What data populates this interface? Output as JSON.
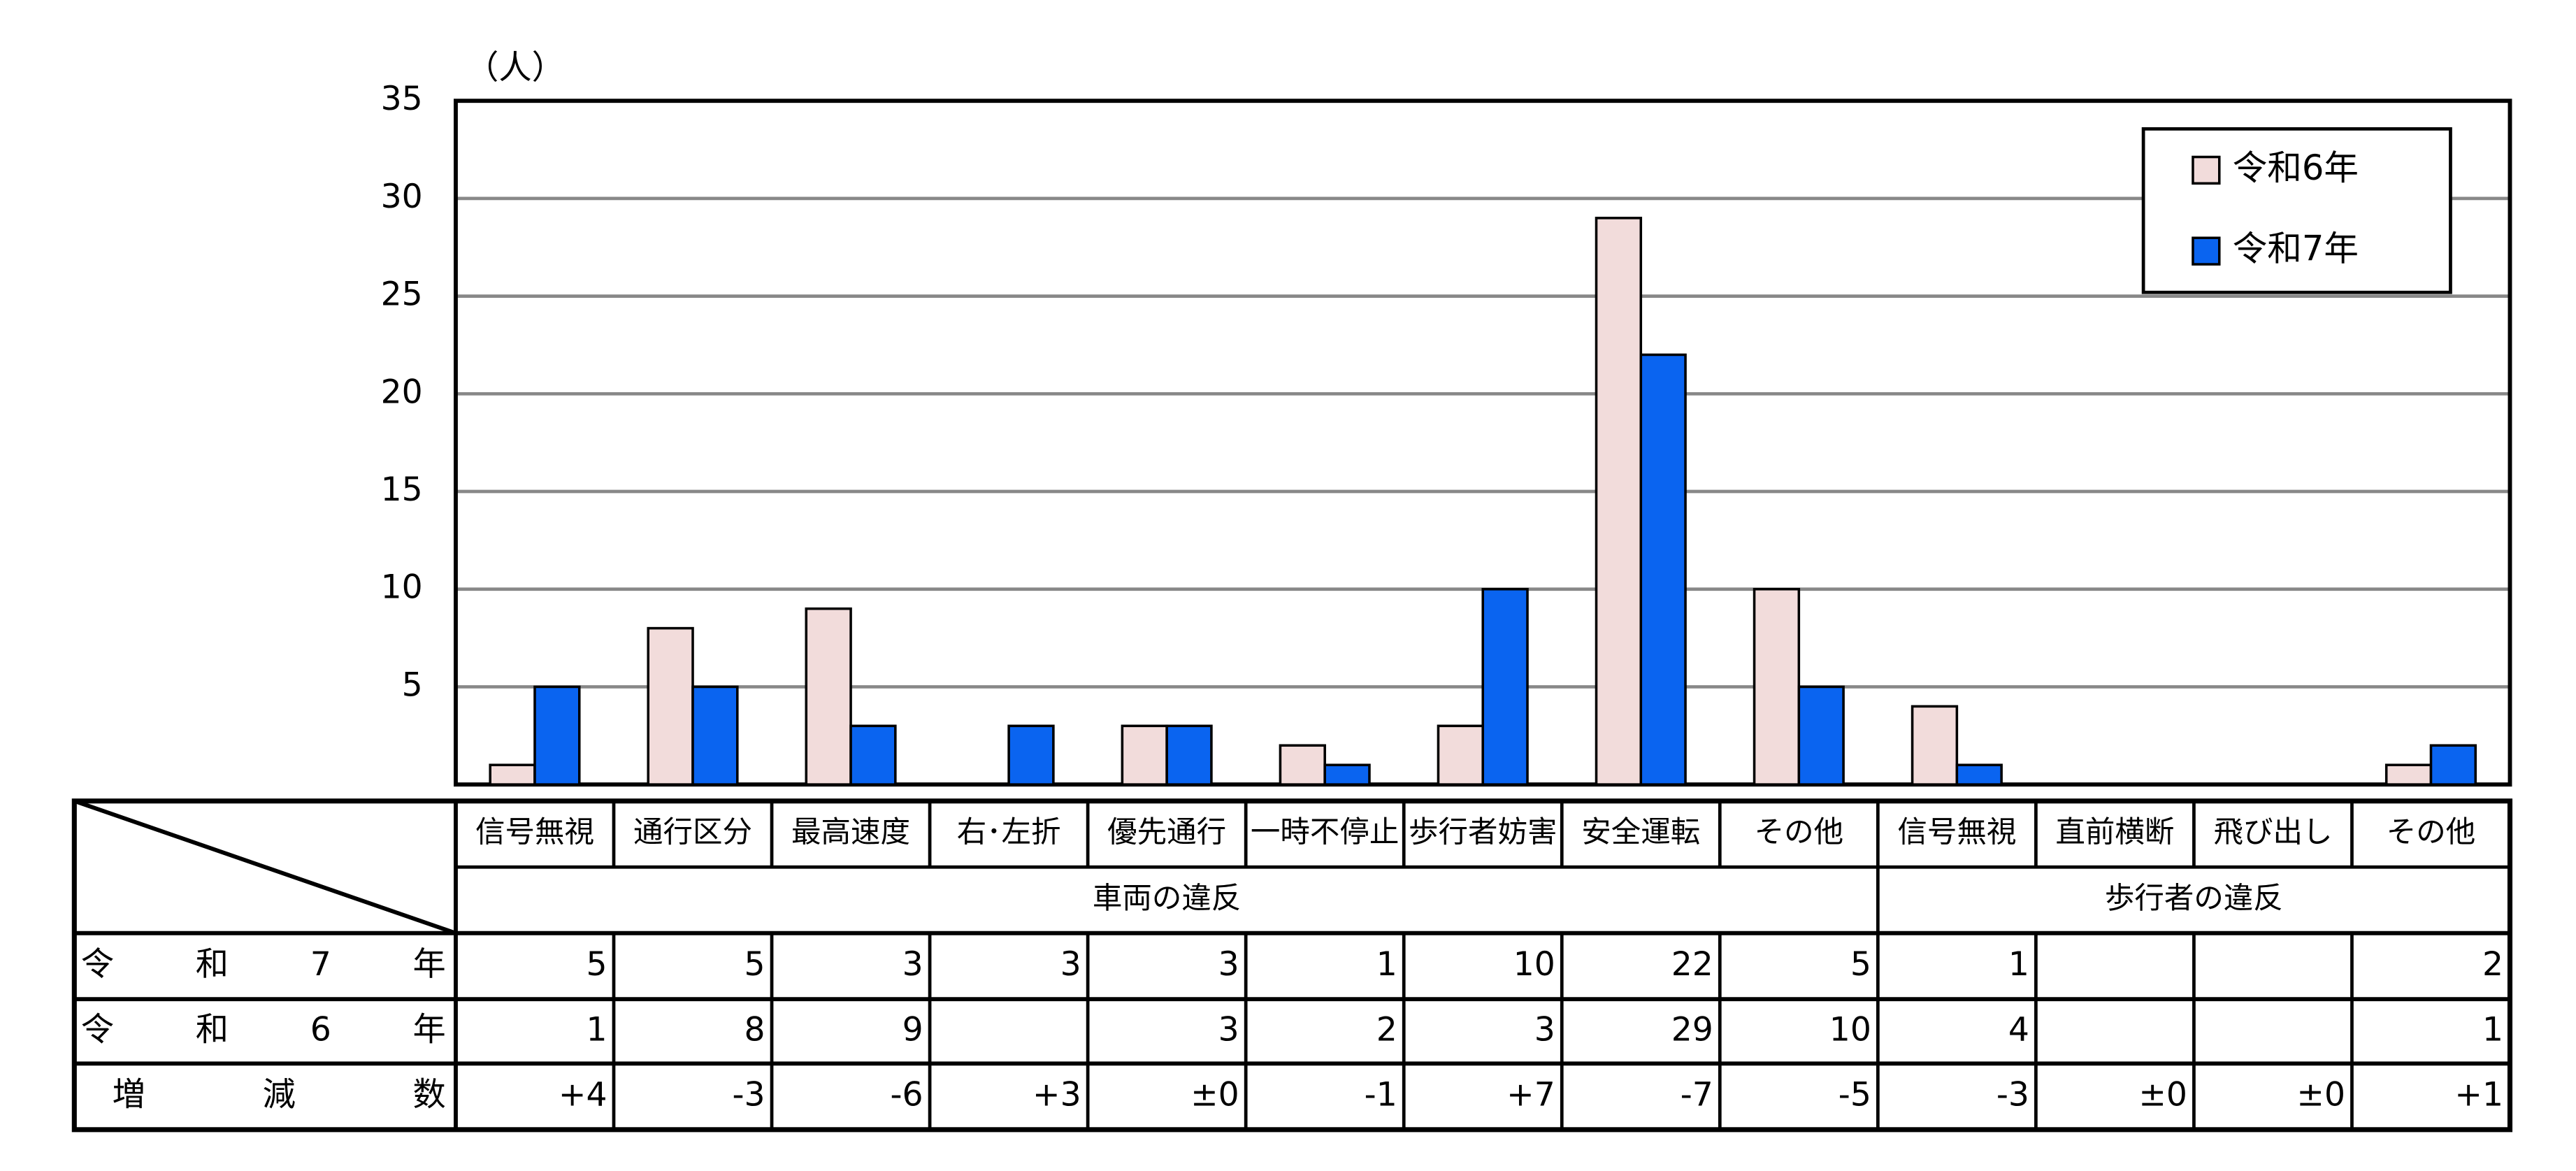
{
  "chart_data": {
    "type": "bar",
    "y_unit": "（人）",
    "categories": [
      "信号無視",
      "通行区分",
      "最高速度",
      "右･左折",
      "優先通行",
      "一時不停止",
      "歩行者妨害",
      "安全運転",
      "その他",
      "信号無視",
      "直前横断",
      "飛び出し",
      "その他"
    ],
    "groups": [
      "車両の違反",
      "歩行者の違反"
    ],
    "series": [
      {
        "name": "令和6年",
        "color": "#f2dcdb",
        "values": [
          1,
          8,
          9,
          null,
          3,
          2,
          3,
          29,
          10,
          4,
          null,
          null,
          1
        ]
      },
      {
        "name": "令和7年",
        "color": "#0a64f0",
        "values": [
          5,
          5,
          3,
          3,
          3,
          1,
          10,
          22,
          5,
          1,
          null,
          null,
          2
        ]
      }
    ],
    "difference_label": "増減数",
    "differences": [
      "+4",
      "-3",
      "-6",
      "+3",
      "±0",
      "-1",
      "+7",
      "-7",
      "-5",
      "-3",
      "±0",
      "±0",
      "+1"
    ],
    "ylim": [
      0,
      35
    ],
    "yticks": [
      5,
      10,
      15,
      20,
      25,
      30,
      35
    ],
    "grid": true,
    "legend": "upper right"
  }
}
